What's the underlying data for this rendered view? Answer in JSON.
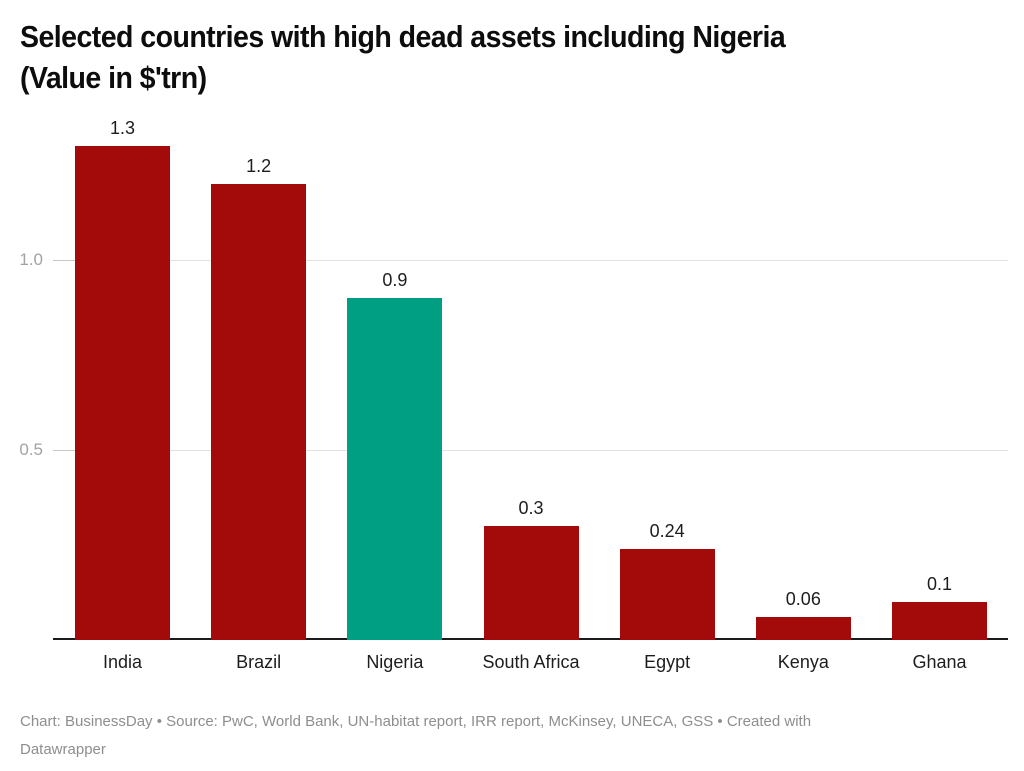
{
  "header": {
    "title_line1": "Selected countries with high dead assets including Nigeria",
    "title_line2": "(Value in $'trn)"
  },
  "chart_data": {
    "type": "bar",
    "title": "Selected countries with high dead assets including Nigeria (Value in $'trn)",
    "categories": [
      "India",
      "Brazil",
      "Nigeria",
      "South Africa",
      "Egypt",
      "Kenya",
      "Ghana"
    ],
    "values": [
      1.3,
      1.2,
      0.9,
      0.3,
      0.24,
      0.06,
      0.1
    ],
    "value_labels": [
      "1.3",
      "1.2",
      "0.9",
      "0.3",
      "0.24",
      "0.06",
      "0.1"
    ],
    "highlight_index": 2,
    "highlight_category": "Nigeria",
    "bar_color_default": "#a30b0b",
    "bar_color_highlight": "#009e83",
    "xlabel": "",
    "ylabel": "",
    "ylim": [
      0,
      1.37
    ],
    "yticks": [
      {
        "value": 0.5,
        "label": "0.5"
      },
      {
        "value": 1.0,
        "label": "1.0"
      }
    ],
    "grid": "horizontal",
    "legend": "none"
  },
  "footer": {
    "line1": "Chart: BusinessDay  • Source: PwC, World Bank, UN-habitat report, IRR report, McKinsey, UNECA, GSS • Created with",
    "line2": "Datawrapper"
  },
  "colors": {
    "bar_red": "#a30b0b",
    "bar_teal": "#009e83",
    "gridline": "#e2e2e2",
    "grid_tick": "#c6c6c6",
    "axis_line": "#1a1b1d",
    "ytick_text": "#a3a3a3",
    "label_text": "#1d1d1d",
    "footer_text": "#8e8e8e",
    "title_text": "#0d0d0d"
  }
}
